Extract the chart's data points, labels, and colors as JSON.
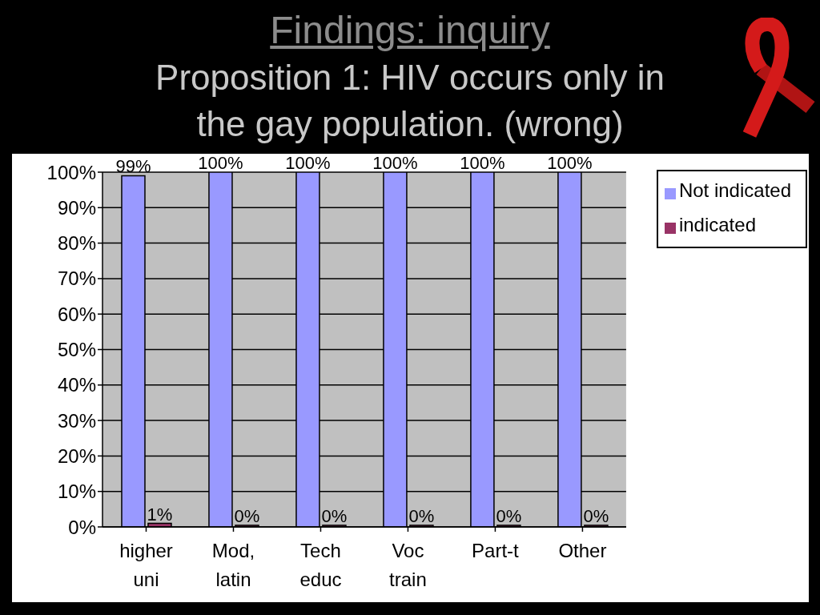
{
  "chart_data": {
    "type": "bar",
    "title": "Findings: inquiry",
    "subtitle": "Proposition 1: HIV occurs only in the gay population. (wrong)",
    "categories": [
      "higher uni",
      "Mod, latin",
      "Tech educ",
      "Voc train",
      "Part-t",
      "Other"
    ],
    "series": [
      {
        "name": "Not indicated",
        "color": "#9999ff",
        "values": [
          99,
          100,
          100,
          100,
          100,
          100
        ],
        "value_labels": [
          "99%",
          "100%",
          "100%",
          "100%",
          "100%",
          "100%"
        ]
      },
      {
        "name": "indicated",
        "color": "#993366",
        "values": [
          1,
          0,
          0,
          0,
          0,
          0
        ],
        "value_labels": [
          "1%",
          "0%",
          "0%",
          "0%",
          "0%",
          "0%"
        ]
      }
    ],
    "ylim": [
      0,
      100
    ],
    "yticks": [
      {
        "value": 0,
        "label": "0%"
      },
      {
        "value": 10,
        "label": "10%"
      },
      {
        "value": 20,
        "label": "20%"
      },
      {
        "value": 30,
        "label": "30%"
      },
      {
        "value": 40,
        "label": "40%"
      },
      {
        "value": 50,
        "label": "50%"
      },
      {
        "value": 60,
        "label": "60%"
      },
      {
        "value": 70,
        "label": "70%"
      },
      {
        "value": 80,
        "label": "80%"
      },
      {
        "value": 90,
        "label": "90%"
      },
      {
        "value": 100,
        "label": "100%"
      }
    ],
    "grid": "y",
    "legend": "top right"
  }
}
